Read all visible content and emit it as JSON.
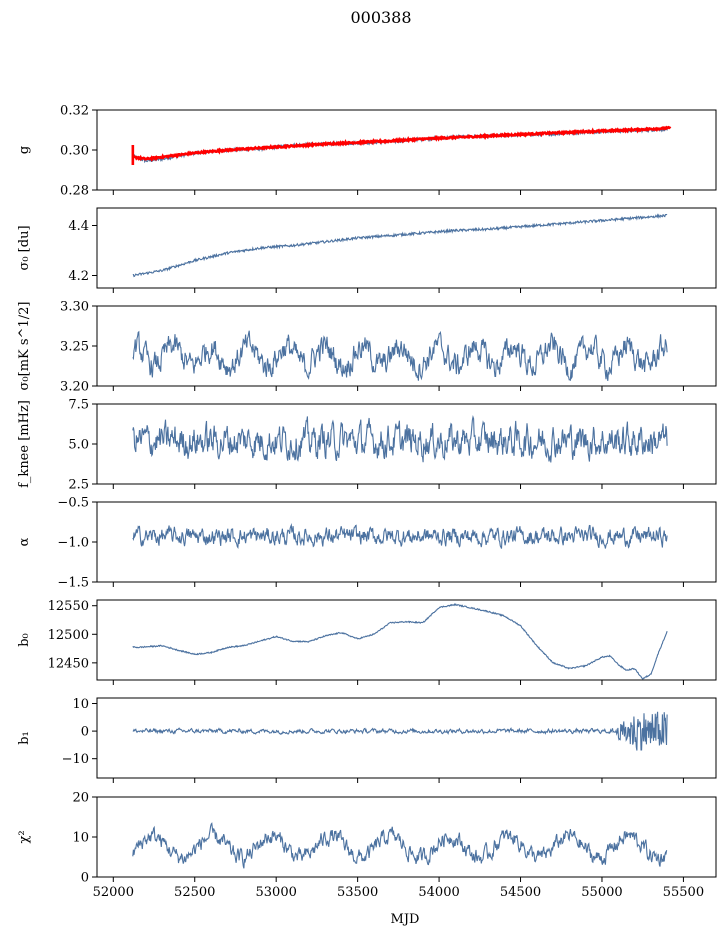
{
  "figure_title": "000388",
  "chart_data": [
    {
      "type": "line",
      "id": "g",
      "ylabel": "g",
      "ylim": [
        0.28,
        0.32
      ],
      "yticks": [
        "0.28",
        "0.30",
        "0.32"
      ],
      "series": [
        {
          "name": "g",
          "color": "#4c72a0",
          "x": [
            52120,
            52200,
            52300,
            52500,
            52700,
            52900,
            53100,
            53300,
            53500,
            53700,
            53900,
            54100,
            54300,
            54500,
            54700,
            54900,
            55100,
            55300,
            55410
          ],
          "values": [
            0.297,
            0.2945,
            0.2955,
            0.2985,
            0.3,
            0.3005,
            0.3025,
            0.303,
            0.3035,
            0.304,
            0.3055,
            0.3065,
            0.307,
            0.3075,
            0.308,
            0.309,
            0.3095,
            0.31,
            0.3105
          ]
        },
        {
          "name": "g fit",
          "color": "#ff0000",
          "x": [
            52120,
            52200,
            52300,
            52500,
            52700,
            52900,
            53100,
            53300,
            53500,
            53700,
            53900,
            54100,
            54300,
            54500,
            54700,
            54900,
            55100,
            55300,
            55420
          ],
          "values": [
            0.2965,
            0.2955,
            0.2965,
            0.2985,
            0.3,
            0.301,
            0.302,
            0.303,
            0.3038,
            0.3045,
            0.3055,
            0.3063,
            0.307,
            0.3078,
            0.3085,
            0.3092,
            0.3098,
            0.3105,
            0.311
          ]
        }
      ]
    },
    {
      "type": "line",
      "id": "sigma0",
      "ylabel": "σ₀ [du]",
      "ylim": [
        4.15,
        4.47
      ],
      "yticks": [
        "4.2",
        "4.4"
      ],
      "series": [
        {
          "name": "sigma0",
          "color": "#4c72a0",
          "x": [
            52120,
            52300,
            52500,
            52700,
            52900,
            53100,
            53300,
            53500,
            53700,
            53900,
            54100,
            54300,
            54500,
            54700,
            54900,
            55100,
            55300,
            55400
          ],
          "values": [
            4.2,
            4.22,
            4.26,
            4.29,
            4.31,
            4.32,
            4.335,
            4.35,
            4.36,
            4.37,
            4.38,
            4.385,
            4.395,
            4.405,
            4.415,
            4.425,
            4.435,
            4.44
          ]
        }
      ]
    },
    {
      "type": "line",
      "id": "sigma0_mk",
      "ylabel": "σ₀[mK s^1/2]",
      "ylim": [
        3.2,
        3.3
      ],
      "yticks": [
        "3.20",
        "3.25",
        "3.30"
      ],
      "series": [
        {
          "name": "sigma0_mk",
          "color": "#4c72a0",
          "mean": 3.237,
          "x": [
            52120,
            55400
          ]
        }
      ]
    },
    {
      "type": "line",
      "id": "fknee",
      "ylabel": "f_knee [mHz]",
      "ylim": [
        2.5,
        7.5
      ],
      "yticks": [
        "2.5",
        "5.0",
        "7.5"
      ],
      "series": [
        {
          "name": "fknee",
          "color": "#4c72a0",
          "mean": 5.2,
          "x": [
            52120,
            55400
          ]
        }
      ]
    },
    {
      "type": "line",
      "id": "alpha",
      "ylabel": "α",
      "ylim": [
        -1.5,
        -0.5
      ],
      "yticks": [
        "−1.5",
        "−1.0",
        "−0.5"
      ],
      "series": [
        {
          "name": "alpha",
          "color": "#4c72a0",
          "mean": -0.93,
          "x": [
            52120,
            55400
          ]
        }
      ]
    },
    {
      "type": "line",
      "id": "b0",
      "ylabel": "b₀",
      "ylim": [
        12420,
        12560
      ],
      "yticks": [
        "12450",
        "12500",
        "12550"
      ],
      "series": [
        {
          "name": "b0",
          "color": "#4c72a0",
          "x": [
            52120,
            52150,
            52200,
            52300,
            52400,
            52500,
            52600,
            52700,
            52800,
            52900,
            53000,
            53100,
            53200,
            53300,
            53400,
            53500,
            53600,
            53700,
            53800,
            53900,
            54000,
            54100,
            54200,
            54300,
            54400,
            54500,
            54600,
            54700,
            54800,
            54900,
            55000,
            55050,
            55100,
            55150,
            55200,
            55250,
            55300,
            55350,
            55400
          ],
          "values": [
            12478,
            12477,
            12478,
            12480,
            12472,
            12465,
            12468,
            12477,
            12480,
            12488,
            12496,
            12488,
            12487,
            12497,
            12503,
            12492,
            12500,
            12520,
            12522,
            12520,
            12547,
            12552,
            12546,
            12540,
            12532,
            12515,
            12480,
            12450,
            12440,
            12445,
            12460,
            12462,
            12447,
            12437,
            12440,
            12422,
            12430,
            12470,
            12505
          ]
        }
      ]
    },
    {
      "type": "line",
      "id": "b1",
      "ylabel": "b₁",
      "ylim": [
        -17,
        12
      ],
      "yticks": [
        "−10",
        "0",
        "10"
      ],
      "series": [
        {
          "name": "b1",
          "color": "#4c72a0",
          "mean": 0,
          "x": [
            52120,
            55400
          ]
        }
      ]
    },
    {
      "type": "line",
      "id": "chi2",
      "ylabel": "χ²",
      "ylim": [
        0,
        20
      ],
      "yticks": [
        "0",
        "10",
        "20"
      ],
      "series": [
        {
          "name": "chi2",
          "color": "#4c72a0",
          "mean": 7.5,
          "period_days": 365,
          "x": [
            52120,
            55400
          ]
        }
      ]
    }
  ],
  "x_axis": {
    "label": "MJD",
    "xlim": [
      51900,
      55700
    ],
    "ticks": [
      "52000",
      "52500",
      "53000",
      "53500",
      "54000",
      "54500",
      "55000",
      "55500"
    ],
    "tick_values": [
      52000,
      52500,
      53000,
      53500,
      54000,
      54500,
      55000,
      55500
    ]
  }
}
